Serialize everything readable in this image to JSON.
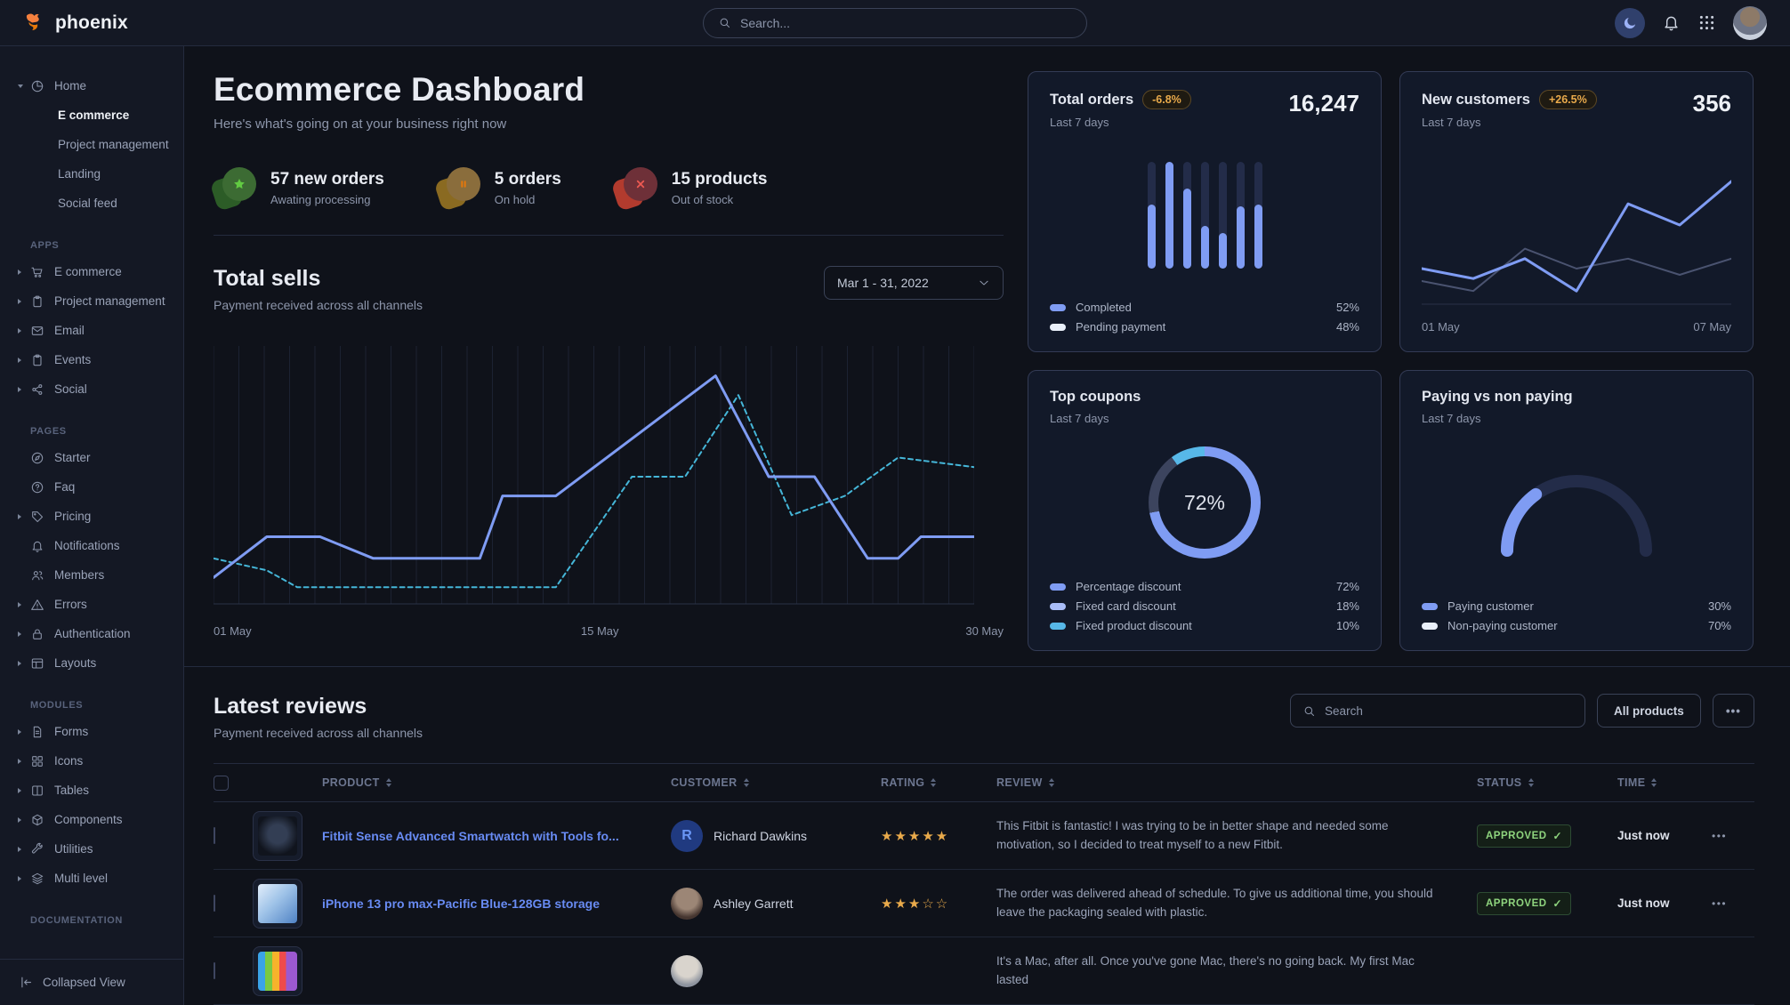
{
  "brand": {
    "name": "phoenix"
  },
  "navbar": {
    "search_placeholder": "Search...",
    "icons": [
      "moon-icon",
      "bell-icon",
      "apps-grid-icon",
      "avatar"
    ]
  },
  "sidebar": {
    "home": {
      "label": "Home",
      "icon": "pie",
      "children": [
        {
          "label": "E commerce",
          "active": true
        },
        {
          "label": "Project management",
          "active": false
        },
        {
          "label": "Landing",
          "active": false
        },
        {
          "label": "Social feed",
          "active": false
        }
      ]
    },
    "sections": [
      {
        "label": "APPS",
        "items": [
          {
            "label": "E commerce",
            "icon": "cart",
            "caret": true
          },
          {
            "label": "Project management",
            "icon": "clipboard",
            "caret": true
          },
          {
            "label": "Email",
            "icon": "envelope",
            "caret": true
          },
          {
            "label": "Events",
            "icon": "clipboard",
            "caret": true
          },
          {
            "label": "Social",
            "icon": "share",
            "caret": true
          }
        ]
      },
      {
        "label": "PAGES",
        "items": [
          {
            "label": "Starter",
            "icon": "compass",
            "caret": false
          },
          {
            "label": "Faq",
            "icon": "question",
            "caret": false
          },
          {
            "label": "Pricing",
            "icon": "tag",
            "caret": true
          },
          {
            "label": "Notifications",
            "icon": "bell",
            "caret": false
          },
          {
            "label": "Members",
            "icon": "users",
            "caret": false
          },
          {
            "label": "Errors",
            "icon": "warning",
            "caret": true
          },
          {
            "label": "Authentication",
            "icon": "lock",
            "caret": true
          },
          {
            "label": "Layouts",
            "icon": "layout",
            "caret": true
          }
        ]
      },
      {
        "label": "MODULES",
        "items": [
          {
            "label": "Forms",
            "icon": "file",
            "caret": true
          },
          {
            "label": "Icons",
            "icon": "grid4",
            "caret": true
          },
          {
            "label": "Tables",
            "icon": "columns",
            "caret": true
          },
          {
            "label": "Components",
            "icon": "box",
            "caret": true
          },
          {
            "label": "Utilities",
            "icon": "wrench",
            "caret": true
          },
          {
            "label": "Multi level",
            "icon": "layers",
            "caret": true
          }
        ]
      },
      {
        "label": "DOCUMENTATION",
        "items": []
      }
    ],
    "collapse_label": "Collapsed View"
  },
  "page": {
    "title": "Ecommerce Dashboard",
    "subtitle": "Here's what's going on at your business right now"
  },
  "stats": [
    {
      "value": "57 new orders",
      "caption": "Awating processing",
      "icon": "star",
      "tone": "success"
    },
    {
      "value": "5 orders",
      "caption": "On hold",
      "icon": "pause",
      "tone": "warning"
    },
    {
      "value": "15 products",
      "caption": "Out of stock",
      "icon": "x",
      "tone": "danger"
    }
  ],
  "total_sells": {
    "title": "Total sells",
    "subtitle": "Payment received across all channels",
    "date_range": "Mar 1 - 31, 2022"
  },
  "cards": {
    "total_orders": {
      "title": "Total orders",
      "badge": "-6.8%",
      "period": "Last 7 days",
      "value": "16,247",
      "legend": [
        {
          "label": "Completed",
          "value": "52%",
          "swatch": "#7f9cf3"
        },
        {
          "label": "Pending payment",
          "value": "48%",
          "swatch": "#e9eff9"
        }
      ]
    },
    "new_customers": {
      "title": "New customers",
      "badge": "+26.5%",
      "period": "Last 7 days",
      "value": "356",
      "x_labels": [
        "01 May",
        "07 May"
      ]
    },
    "top_coupons": {
      "title": "Top coupons",
      "period": "Last 7 days",
      "center_value": "72%",
      "legend": [
        {
          "label": "Percentage discount",
          "value": "72%",
          "swatch": "#7f9cf3"
        },
        {
          "label": "Fixed card discount",
          "value": "18%",
          "swatch": "#a9bdf8"
        },
        {
          "label": "Fixed product discount",
          "value": "10%",
          "swatch": "#57b8e8"
        }
      ]
    },
    "paying": {
      "title": "Paying vs non paying",
      "period": "Last 7 days",
      "legend": [
        {
          "label": "Paying customer",
          "value": "30%",
          "swatch": "#7f9cf3"
        },
        {
          "label": "Non-paying customer",
          "value": "70%",
          "swatch": "#e9eff9"
        }
      ]
    }
  },
  "reviews": {
    "title": "Latest reviews",
    "subtitle": "Payment received across all channels",
    "search_placeholder": "Search",
    "filter_button": "All products",
    "more_button": "•••",
    "columns": [
      "PRODUCT",
      "CUSTOMER",
      "RATING",
      "REVIEW",
      "STATUS",
      "TIME"
    ],
    "rows": [
      {
        "product": "Fitbit Sense Advanced Smartwatch with Tools fo...",
        "thumb": "watch",
        "customer": "Richard Dawkins",
        "avatar": "initial",
        "avatar_initial": "R",
        "rating": 5,
        "review": "This Fitbit is fantastic! I was trying to be in better shape and needed some motivation, so I decided to treat myself to a new Fitbit.",
        "status": "APPROVED",
        "time": "Just now"
      },
      {
        "product": "iPhone 13 pro max-Pacific Blue-128GB storage",
        "thumb": "iphone",
        "customer": "Ashley Garrett",
        "avatar": "photo-1",
        "avatar_initial": "",
        "rating": 3,
        "review": "The order was delivered ahead of schedule. To give us additional time, you should leave the packaging sealed with plastic.",
        "status": "APPROVED",
        "time": "Just now"
      },
      {
        "product": "",
        "thumb": "imac",
        "customer": "",
        "avatar": "photo-2",
        "avatar_initial": "",
        "rating": 0,
        "review": "It's a Mac, after all. Once you've gone Mac, there's no going back. My first Mac lasted",
        "status": "",
        "time": ""
      }
    ]
  },
  "chart_data": [
    {
      "id": "total-sells",
      "type": "line",
      "title": "Total sells",
      "xlabel": "",
      "ylabel": "",
      "x_axis": [
        "01 May",
        "15 May",
        "30 May"
      ],
      "ylim": [
        0,
        100
      ],
      "grid": "vertical",
      "series": [
        {
          "name": "current",
          "style": "solid",
          "color": "#7f9cf3",
          "points": [
            [
              0,
              8
            ],
            [
              7,
              25
            ],
            [
              14,
              25
            ],
            [
              21,
              16
            ],
            [
              35,
              16
            ],
            [
              38,
              42
            ],
            [
              45,
              42
            ],
            [
              66,
              92
            ],
            [
              73,
              50
            ],
            [
              79,
              50
            ],
            [
              86,
              16
            ],
            [
              90,
              16
            ],
            [
              93,
              25
            ],
            [
              100,
              25
            ]
          ]
        },
        {
          "name": "previous",
          "style": "dashed",
          "color": "#45b6d8",
          "points": [
            [
              0,
              16
            ],
            [
              7,
              11
            ],
            [
              11,
              4
            ],
            [
              45,
              4
            ],
            [
              55,
              50
            ],
            [
              62,
              50
            ],
            [
              69,
              84
            ],
            [
              76,
              34
            ],
            [
              83,
              42
            ],
            [
              90,
              58
            ],
            [
              100,
              54
            ]
          ]
        }
      ]
    },
    {
      "id": "total-orders",
      "type": "bar",
      "title": "Total orders — last 7 days",
      "categories": [
        "1",
        "2",
        "3",
        "4",
        "5",
        "6",
        "7"
      ],
      "ylim": [
        0,
        100
      ],
      "series": [
        {
          "name": "Completed",
          "color": "#7f9cf3",
          "values": [
            60,
            100,
            75,
            40,
            33,
            58,
            60
          ]
        },
        {
          "name": "Pending payment",
          "color": "#232c49",
          "values": [
            40,
            0,
            25,
            60,
            67,
            42,
            40
          ]
        }
      ],
      "totals": {
        "completed_pct": 52,
        "pending_pct": 48
      }
    },
    {
      "id": "new-customers",
      "type": "line",
      "title": "New customers — last 7 days",
      "x_axis": [
        "01 May",
        "07 May"
      ],
      "ylim": [
        0,
        100
      ],
      "series": [
        {
          "name": "previous",
          "color": "#4a5370",
          "values": [
            10,
            2,
            36,
            20,
            28,
            15,
            28
          ]
        },
        {
          "name": "current",
          "color": "#7f9cf3",
          "values": [
            20,
            12,
            28,
            2,
            72,
            55,
            90
          ]
        }
      ]
    },
    {
      "id": "top-coupons",
      "type": "donut",
      "title": "Top coupons — last 7 days",
      "center_label": "72%",
      "slices": [
        {
          "label": "Percentage discount",
          "value": 72,
          "ring_color": "#7f9cf3"
        },
        {
          "label": "Fixed card discount",
          "value": 18,
          "ring_color": "#3c445e"
        },
        {
          "label": "Fixed product discount",
          "value": 10,
          "ring_color": "#57b8e8"
        }
      ]
    },
    {
      "id": "paying-gauge",
      "type": "gauge",
      "title": "Paying vs non paying — last 7 days",
      "slices": [
        {
          "label": "Paying customer",
          "value": 30,
          "color": "#7f9cf3"
        },
        {
          "label": "Non-paying customer",
          "value": 70,
          "color": "#232c49"
        }
      ]
    }
  ]
}
